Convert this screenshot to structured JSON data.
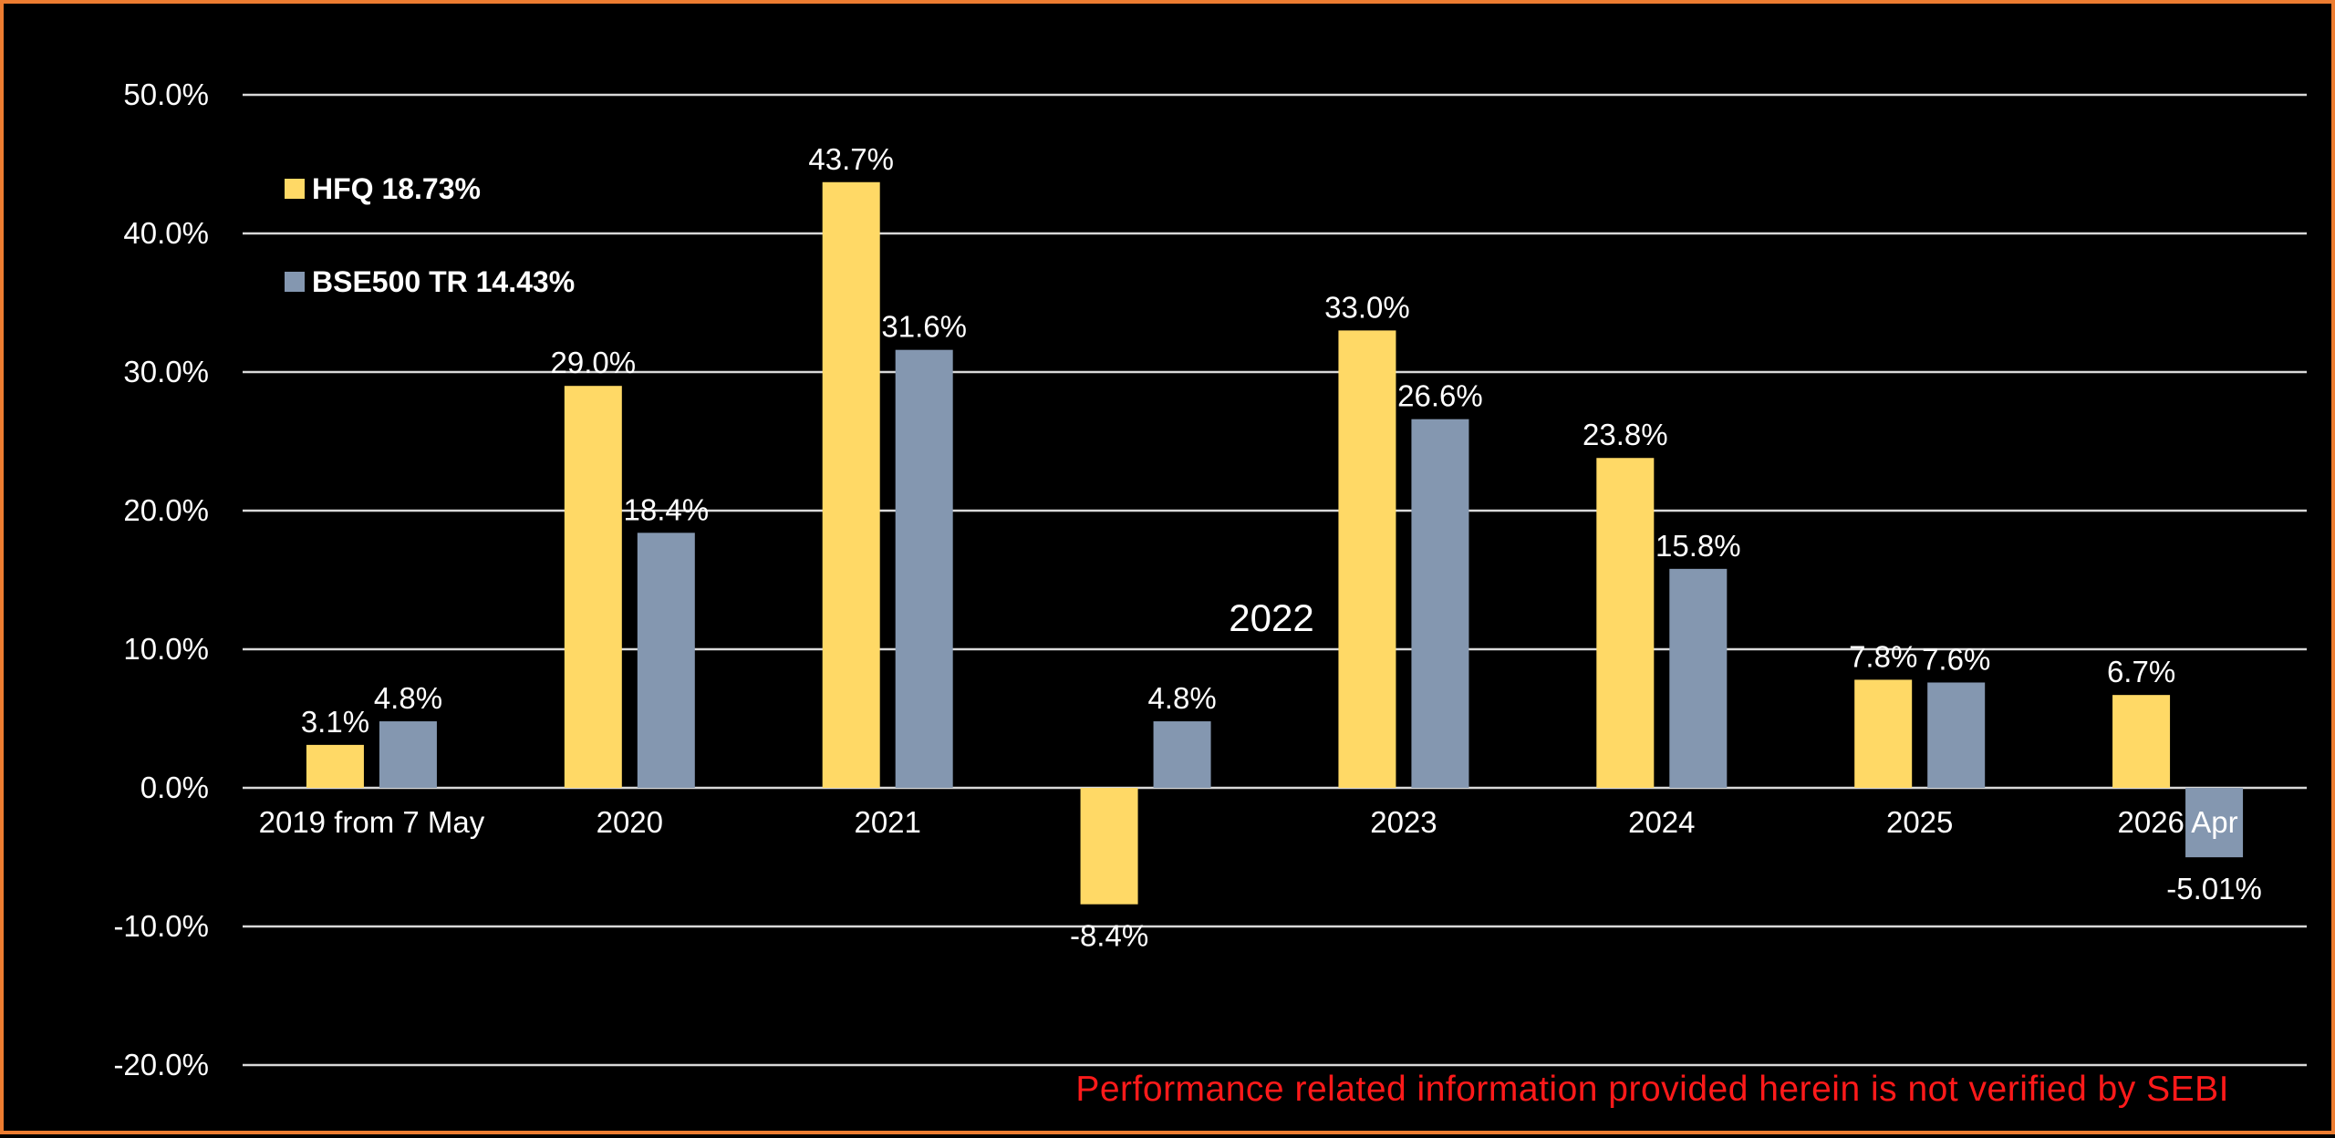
{
  "chart_data": {
    "type": "bar",
    "categories": [
      "2019 from 7 May",
      "2020",
      "2021",
      "",
      "2023",
      "2024",
      "2025",
      "2026 Apr"
    ],
    "series": [
      {
        "name": "HFQ 18.73%",
        "color": "#FFD966",
        "values": [
          3.1,
          29.0,
          43.7,
          -8.4,
          33.0,
          23.8,
          7.8,
          6.7
        ],
        "labels": [
          "3.1%",
          "29.0%",
          "43.7%",
          "-8.4%",
          "33.0%",
          "23.8%",
          "7.8%",
          "6.7%"
        ]
      },
      {
        "name": "BSE500 TR 14.43%",
        "color": "#8497B0",
        "values": [
          4.8,
          18.4,
          31.6,
          4.8,
          26.6,
          15.8,
          7.6,
          -5.01
        ],
        "labels": [
          "4.8%",
          "18.4%",
          "31.6%",
          "4.8%",
          "26.6%",
          "15.8%",
          "7.6%",
          "-5.01%"
        ]
      }
    ],
    "ylim": [
      -20,
      50
    ],
    "yticks": [
      50,
      40,
      30,
      20,
      10,
      0,
      -10,
      -20
    ],
    "ytick_labels": [
      "50.0%",
      "40.0%",
      "30.0%",
      "20.0%",
      "10.0%",
      "0.0%",
      "-10.0%",
      "-20.0%"
    ],
    "grid": true,
    "legend_position": "top-left",
    "annotation": "2022",
    "disclaimer": "Performance related information provided herein is not verified by SEBI",
    "background": "#000000",
    "border_color": "#ED7D31",
    "gridline_color": "#D9D9D9",
    "disclaimer_color": "#FF0000"
  }
}
